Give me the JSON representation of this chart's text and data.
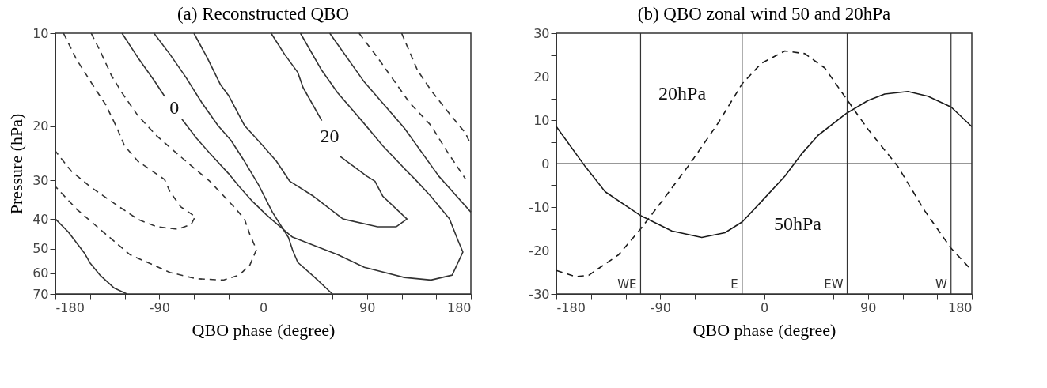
{
  "chart_data": [
    {
      "type": "line",
      "title": "(a) Reconstructed QBO",
      "xlabel": "QBO phase (degree)",
      "ylabel": "Pressure (hPa)",
      "log": "y",
      "xlim": [
        -180,
        180
      ],
      "ylim": [
        70,
        10
      ],
      "xticks": [
        -180,
        {
          "value": -150,
          "label": null
        },
        {
          "value": -120,
          "label": null
        },
        -90,
        {
          "value": -60,
          "label": null
        },
        {
          "value": -30,
          "label": null
        },
        0,
        {
          "value": 30,
          "label": null
        },
        {
          "value": 60,
          "label": null
        },
        90,
        {
          "value": 120,
          "label": null
        },
        {
          "value": 150,
          "label": null
        },
        180
      ],
      "yticks": [
        10,
        20,
        30,
        40,
        50,
        60,
        70
      ],
      "series": [
        {
          "color": "#333333",
          "line_style": "solid",
          "x": [
            -180,
            -169,
            -155,
            -150,
            -141,
            -129,
            -118
          ],
          "values": [
            40,
            44,
            51.5,
            55.5,
            61,
            67,
            70
          ]
        },
        {
          "color": "#333333",
          "line_style": "dashed",
          "x": [
            -173,
            -161.5,
            -147.7,
            -136.2,
            -126.9,
            -120,
            -108.5,
            -85.4,
            -80.8,
            -71.5,
            -58.8,
            -62.3,
            -73.8,
            -92.3,
            -108.5,
            -131.5,
            -150,
            -166.2,
            -180
          ],
          "values": [
            10,
            12.2,
            14.7,
            17.1,
            20.2,
            23.2,
            26,
            29.8,
            32.6,
            36.5,
            39.3,
            41.6,
            43.2,
            42.4,
            40.1,
            35.1,
            31.4,
            28,
            24.1
          ]
        },
        {
          "color": "#333333",
          "line_style": "dashed",
          "x": [
            -149,
            -140.8,
            -131.5,
            -122.3,
            -108.5,
            -92.3,
            -66.9,
            -46.2,
            -25.4,
            -16.2,
            -11.5,
            -5.8,
            -11.5,
            -20.8,
            -34.6,
            -57.7,
            -80.8,
            -115.4,
            -138.5,
            -161.5,
            -180
          ],
          "values": [
            10,
            11.5,
            13.7,
            15.6,
            18.5,
            21.5,
            26,
            30.2,
            36.5,
            40,
            44.9,
            50.3,
            56.4,
            60.8,
            63.1,
            62.5,
            59.6,
            52.2,
            44.1,
            37.2,
            31.4
          ]
        },
        {
          "color": "#333333",
          "line_style": "solid",
          "x": [
            -122.3,
            -108.5,
            -94.6,
            -85.4
          ],
          "values": [
            10,
            12,
            14.2,
            16
          ]
        },
        {
          "color": "#333333",
          "line_style": "solid",
          "x": [
            -70.4,
            -57.7,
            -46.2,
            -30,
            -20.8,
            -9.2,
            2.3,
            6.9,
            25.4,
            64.6,
            87.7,
            122.3,
            145.4,
            163.8,
            173.1,
            168.5,
            161.5,
            145.4,
            131.5,
            124.6,
            103.8,
            85.4,
            64.6,
            50.8,
            32.3
          ],
          "values": [
            19,
            21.9,
            24.5,
            28.5,
            31.4,
            35.1,
            38.6,
            40,
            45.8,
            52.2,
            57.4,
            61.9,
            63.1,
            60.8,
            51.2,
            46.6,
            40,
            33.8,
            29.7,
            28,
            23.2,
            19.2,
            15.6,
            13.2,
            10
          ]
        },
        {
          "color": "#333333",
          "line_style": "solid",
          "x": [
            -94.6,
            -80.8,
            -66.9,
            -53.1,
            -39.2,
            -27.7,
            -16.2,
            -4,
            8,
            22,
            25.4,
            30,
            45,
            60
          ],
          "values": [
            10,
            11.7,
            13.9,
            16.8,
            19.9,
            22.3,
            26,
            31,
            38,
            46,
            50.3,
            55.3,
            62,
            70
          ]
        },
        {
          "color": "#333333",
          "line_style": "solid",
          "x": [
            -60,
            -48.5,
            -36.9,
            -30,
            -16.2,
            0,
            11.5,
            23.1,
            43.8,
            69.2,
            99.2,
            115.4,
            124.6,
            103.8,
            96.9,
            90,
            66.9
          ],
          "values": [
            10,
            12,
            14.7,
            15.9,
            19.9,
            23.2,
            26,
            30.2,
            33.8,
            40,
            42.4,
            42.4,
            40,
            33.8,
            30.2,
            29.1,
            25.1
          ]
        },
        {
          "color": "#333333",
          "line_style": "solid",
          "x": [
            50.8,
            34.6,
            30,
            18.5,
            6.9
          ],
          "values": [
            19.2,
            15,
            13.4,
            11.7,
            10
          ]
        },
        {
          "color": "#333333",
          "line_style": "solid",
          "x": [
            57.7,
            87.7,
            122.3,
            152.3,
            180
          ],
          "values": [
            10,
            14.4,
            20.3,
            29.1,
            38
          ]
        },
        {
          "color": "#333333",
          "line_style": "dashed",
          "x": [
            83.1,
            99.2,
            113.1,
            126.9,
            145.4,
            159.2,
            175.4
          ],
          "values": [
            10,
            12,
            14.2,
            16.8,
            19.9,
            24.1,
            29.7
          ]
        },
        {
          "color": "#333333",
          "line_style": "dashed",
          "x": [
            120,
            133.8,
            145.4,
            159.2,
            175.4,
            180
          ],
          "values": [
            10,
            13.2,
            15.3,
            17.8,
            21.1,
            23
          ]
        }
      ],
      "annotations": [
        "0",
        "20"
      ]
    },
    {
      "type": "line",
      "title": "(b) QBO zonal wind 50 and 20hPa",
      "xlabel": "QBO phase (degree)",
      "xlim": [
        -180,
        180
      ],
      "ylim": [
        -30,
        30
      ],
      "xticks": [
        -180,
        {
          "value": -150,
          "label": null
        },
        {
          "value": -120,
          "label": null
        },
        -90,
        {
          "value": -60,
          "label": null
        },
        {
          "value": -30,
          "label": null
        },
        0,
        {
          "value": 30,
          "label": null
        },
        {
          "value": 60,
          "label": null
        },
        90,
        {
          "value": 120,
          "label": null
        },
        {
          "value": 150,
          "label": null
        },
        180
      ],
      "yticks": [
        -30,
        {
          "value": -25,
          "label": null
        },
        -20,
        {
          "value": -15,
          "label": null
        },
        -10,
        {
          "value": -5,
          "label": null
        },
        0,
        {
          "value": 5,
          "label": null
        },
        10,
        {
          "value": 15,
          "label": null
        },
        20,
        {
          "value": 25,
          "label": null
        },
        30
      ],
      "series": [
        {
          "color": "#1a1a1a",
          "line_style": "solid",
          "x": [
            -180,
            -154.9,
            -137.6,
            -107.4,
            -80,
            -54,
            -33.9,
            -18.9,
            -2.2,
            18,
            32.4,
            46.8,
            71.6,
            90,
            104.5,
            124.6,
            141.9,
            162.1,
            180
          ],
          "values": [
            8.5,
            -0.7,
            -6.5,
            -11.9,
            -15.5,
            -17,
            -15.9,
            -13.4,
            -8.7,
            -2.9,
            2.2,
            6.5,
            11.6,
            14.5,
            16,
            16.6,
            15.5,
            13,
            8.5
          ]
        },
        {
          "color": "#1a1a1a",
          "line_style": "dashed",
          "x": [
            -180,
            -163.6,
            -152,
            -126.1,
            -107.4,
            -88.6,
            -64.1,
            -39.6,
            -18.9,
            -2.2,
            18,
            35.3,
            52.6,
            71.6,
            90,
            116,
            139,
            162.1,
            180
          ],
          "values": [
            -24.6,
            -26,
            -25.7,
            -21,
            -15.2,
            -8.7,
            0,
            9.4,
            18.4,
            23.1,
            25.9,
            25.3,
            22,
            14.8,
            7.9,
            -0.7,
            -10.8,
            -19.5,
            -24.6
          ]
        }
      ],
      "ref_lines": [
        {
          "axis": "x",
          "value": -107,
          "label": "WE"
        },
        {
          "axis": "x",
          "value": -19,
          "label": "E"
        },
        {
          "axis": "x",
          "value": 72,
          "label": "EW"
        },
        {
          "axis": "x",
          "value": 162,
          "label": "W"
        },
        {
          "axis": "y",
          "value": 0
        }
      ],
      "annotations": [
        "20hPa",
        "50hPa"
      ]
    }
  ]
}
